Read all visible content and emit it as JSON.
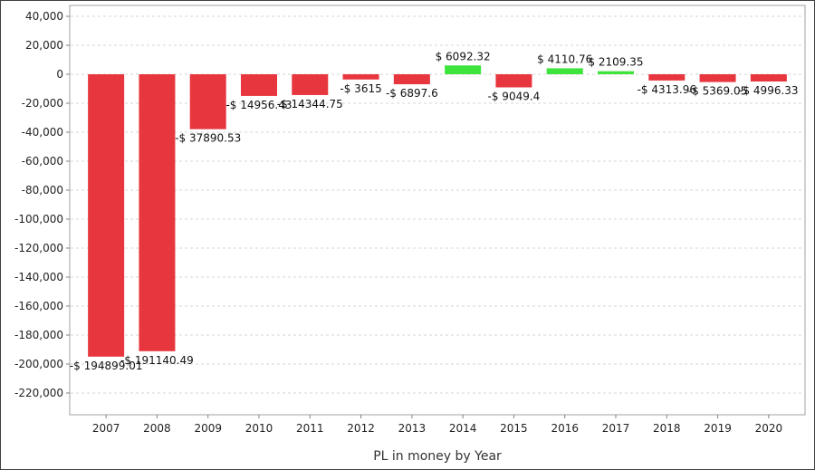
{
  "chart_data": {
    "type": "bar",
    "title": "",
    "xlabel": "PL in money by Year",
    "ylabel": "",
    "ylim": [
      -240000,
      45000
    ],
    "yticks": [
      40000,
      20000,
      0,
      -20000,
      -40000,
      -60000,
      -80000,
      -100000,
      -120000,
      -140000,
      -160000,
      -180000,
      -200000,
      -220000
    ],
    "ytick_labels": [
      "40,000",
      "20,000",
      "0",
      "-20,000",
      "-40,000",
      "-60,000",
      "-80,000",
      "-100,000",
      "-120,000",
      "-140,000",
      "-160,000",
      "-180,000",
      "-200,000",
      "-220,000"
    ],
    "grid": true,
    "categories": [
      "2007",
      "2008",
      "2009",
      "2010",
      "2011",
      "2012",
      "2013",
      "2014",
      "2015",
      "2016",
      "2017",
      "2018",
      "2019",
      "2020"
    ],
    "values": [
      -194899.01,
      -191140.49,
      -37890.53,
      -14956.43,
      -14344.75,
      -3615,
      -6897.6,
      6092.32,
      -9049.4,
      4110.76,
      2109.35,
      -4313.96,
      -5369.05,
      -4996.33
    ],
    "data_labels": [
      "-$ 194899.01",
      "-$ 191140.49",
      "-$ 37890.53",
      "-$ 14956.43",
      "-$ 14344.75",
      "-$ 3615",
      "-$ 6897.6",
      "$ 6092.32",
      "-$ 9049.4",
      "$ 4110.76",
      "$ 2109.35",
      "-$ 4313.96",
      "-$ 5369.05",
      "-$ 4996.33"
    ],
    "colors": {
      "negative": "#e8363f",
      "positive": "#3ce43c",
      "grid": "#d6d6d6",
      "axis": "#808080"
    }
  }
}
